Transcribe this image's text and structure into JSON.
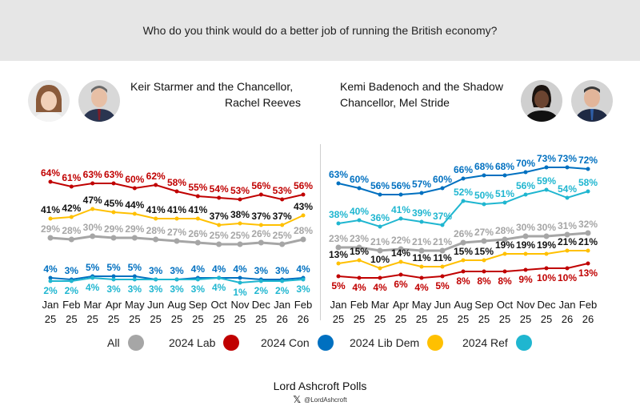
{
  "question": "Who do you think would do a better job of running the British economy?",
  "panels": [
    {
      "title_line1": "Keir Starmer and the Chancellor,",
      "title_line2": "Rachel Reeves"
    },
    {
      "title_line1": "Kemi Badenoch and the Shadow",
      "title_line2": "Chancellor, Mel Stride"
    }
  ],
  "colors": {
    "All": "#a6a6a6",
    "2024 Lab": "#c00000",
    "2024 Con": "#0070c0",
    "2024 Lib Dem": "#ffc000",
    "2024 Ref": "#1fb6d0"
  },
  "legend": [
    {
      "label": "All",
      "color": "#a6a6a6"
    },
    {
      "label": "2024 Lab",
      "color": "#c00000"
    },
    {
      "label": "2024 Con",
      "color": "#0070c0"
    },
    {
      "label": "2024 Lib Dem",
      "color": "#ffc000"
    },
    {
      "label": "2024 Ref",
      "color": "#1fb6d0"
    }
  ],
  "footer": {
    "title": "Lord Ashcroft Polls",
    "handle": "@LordAshcroft",
    "icon": "x-icon"
  },
  "chart_data": [
    {
      "type": "line",
      "title": "Keir Starmer and the Chancellor, Rachel Reeves",
      "categories": [
        [
          "Jan",
          "25"
        ],
        [
          "Feb",
          "25"
        ],
        [
          "Mar",
          "25"
        ],
        [
          "Apr",
          "25"
        ],
        [
          "May",
          "25"
        ],
        [
          "Jun",
          "25"
        ],
        [
          "Aug",
          "25"
        ],
        [
          "Sep",
          "25"
        ],
        [
          "Oct",
          "25"
        ],
        [
          "Nov",
          "25"
        ],
        [
          "Dec",
          "25"
        ],
        [
          "Jan",
          "26"
        ],
        [
          "Feb",
          "26"
        ]
      ],
      "unit": "%",
      "series": [
        {
          "name": "2024 Lab",
          "values": [
            64,
            61,
            63,
            63,
            60,
            62,
            58,
            55,
            54,
            53,
            56,
            53,
            56
          ]
        },
        {
          "name": "2024 Lib Dem",
          "values": [
            41,
            42,
            47,
            45,
            44,
            41,
            41,
            41,
            37,
            38,
            37,
            37,
            43
          ]
        },
        {
          "name": "All",
          "values": [
            29,
            28,
            30,
            29,
            29,
            28,
            27,
            26,
            25,
            25,
            26,
            25,
            28
          ]
        },
        {
          "name": "2024 Con",
          "values": [
            4,
            3,
            5,
            5,
            5,
            3,
            3,
            4,
            4,
            4,
            3,
            3,
            4
          ]
        },
        {
          "name": "2024 Ref",
          "values": [
            2,
            2,
            4,
            3,
            3,
            3,
            3,
            3,
            4,
            1,
            2,
            2,
            3
          ]
        }
      ]
    },
    {
      "type": "line",
      "title": "Kemi Badenoch and the Shadow Chancellor, Mel Stride",
      "categories": [
        [
          "Jan",
          "25"
        ],
        [
          "Feb",
          "25"
        ],
        [
          "Mar",
          "25"
        ],
        [
          "Apr",
          "25"
        ],
        [
          "May",
          "25"
        ],
        [
          "Jun",
          "25"
        ],
        [
          "Aug",
          "25"
        ],
        [
          "Sep",
          "25"
        ],
        [
          "Oct",
          "25"
        ],
        [
          "Nov",
          "25"
        ],
        [
          "Dec",
          "25"
        ],
        [
          "Jan",
          "26"
        ],
        [
          "Feb",
          "26"
        ]
      ],
      "unit": "%",
      "series": [
        {
          "name": "2024 Con",
          "values": [
            63,
            60,
            56,
            56,
            57,
            60,
            66,
            68,
            68,
            70,
            73,
            73,
            72
          ]
        },
        {
          "name": "2024 Ref",
          "values": [
            38,
            40,
            36,
            41,
            39,
            37,
            52,
            50,
            51,
            56,
            59,
            54,
            58
          ]
        },
        {
          "name": "All",
          "values": [
            23,
            23,
            21,
            22,
            21,
            21,
            26,
            27,
            28,
            30,
            30,
            31,
            32
          ]
        },
        {
          "name": "2024 Lib Dem",
          "values": [
            13,
            15,
            10,
            14,
            11,
            11,
            15,
            15,
            19,
            19,
            19,
            21,
            21
          ]
        },
        {
          "name": "2024 Lab",
          "values": [
            5,
            4,
            4,
            6,
            4,
            5,
            8,
            8,
            8,
            9,
            10,
            10,
            13
          ]
        }
      ]
    }
  ]
}
